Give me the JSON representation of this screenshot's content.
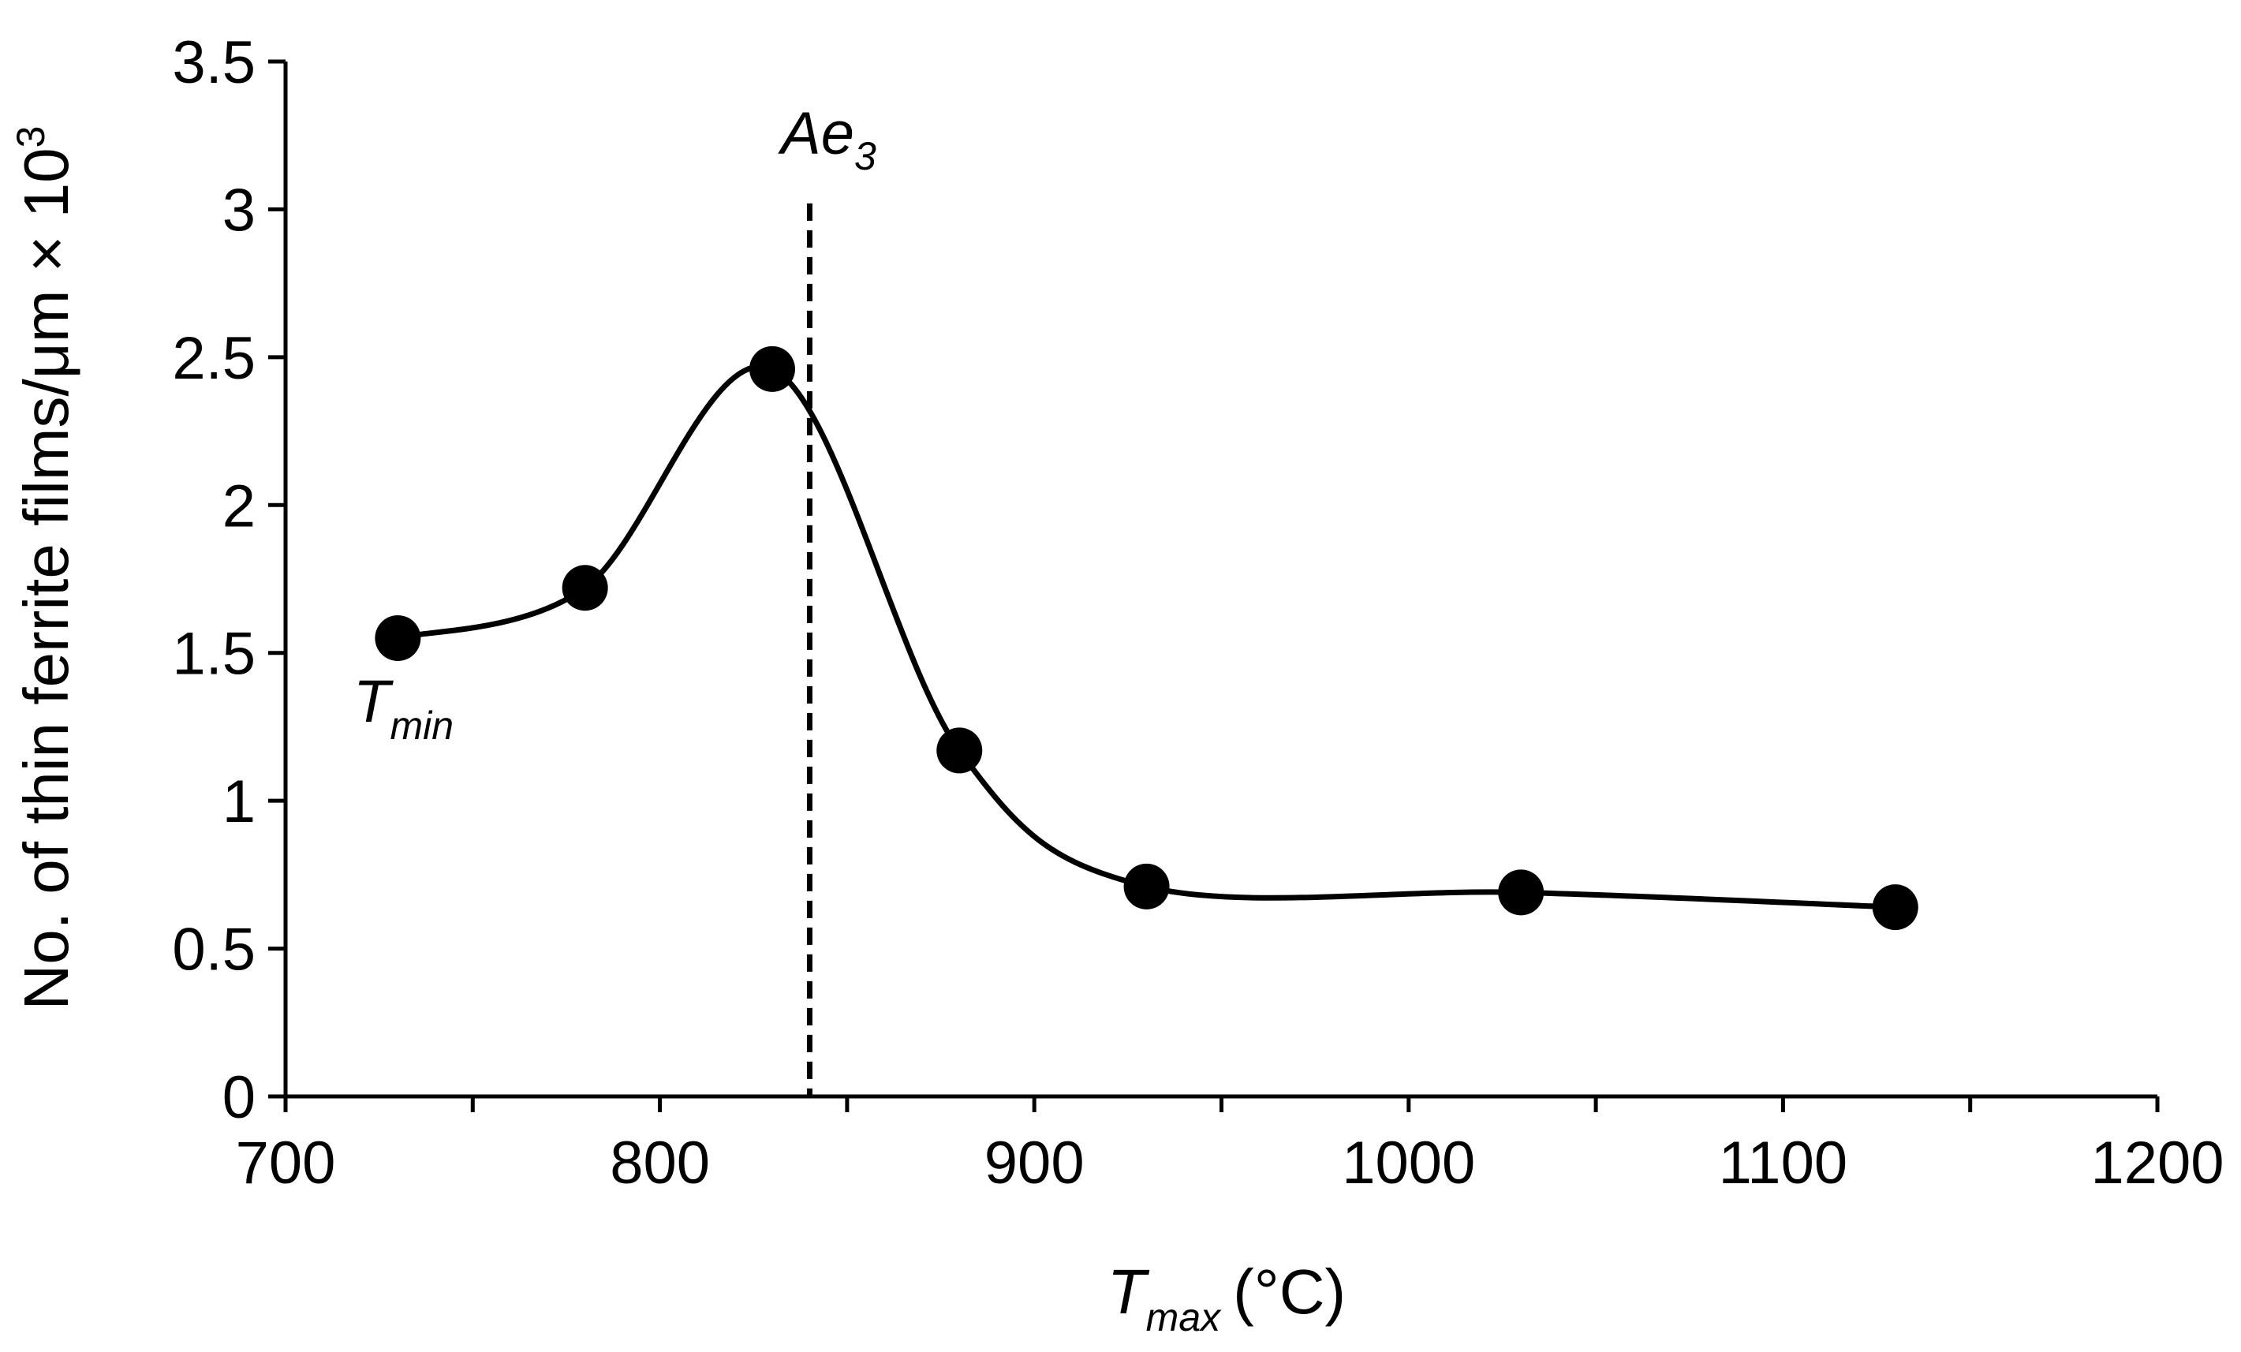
{
  "chart_data": {
    "type": "line",
    "title": "",
    "xlabel": {
      "main": "T",
      "subscript": "max",
      "unit": "(°C)"
    },
    "ylabel": {
      "main": "No. of thin ferrite films/μm × 10",
      "superscript": "3"
    },
    "xlim": [
      700,
      1200
    ],
    "ylim": [
      0,
      3.5
    ],
    "x_ticks": [
      700,
      800,
      900,
      1000,
      1100,
      1200
    ],
    "y_ticks": [
      0,
      0.5,
      1,
      1.5,
      2,
      2.5,
      3,
      3.5
    ],
    "y_tick_labels": [
      "0",
      "0.5",
      "1",
      "1.5",
      "2",
      "2.5",
      "3",
      "3.5"
    ],
    "minor_x_tick_step": 50,
    "grid": false,
    "series": [
      {
        "name": "Thin ferrite films",
        "x": [
          730,
          780,
          830,
          880,
          930,
          1030,
          1130
        ],
        "y": [
          1.55,
          1.72,
          2.46,
          1.17,
          0.71,
          0.69,
          0.64
        ],
        "smooth": true,
        "marker": "circle",
        "color": "#000000"
      }
    ],
    "annotations": [
      {
        "id": "ae3",
        "text_main": "Ae",
        "text_sub": "3",
        "x": 840,
        "style": "dashed vertical line"
      },
      {
        "id": "tmin",
        "text_main": "T",
        "text_sub": "min",
        "x": 730,
        "y": 1.55
      }
    ]
  }
}
